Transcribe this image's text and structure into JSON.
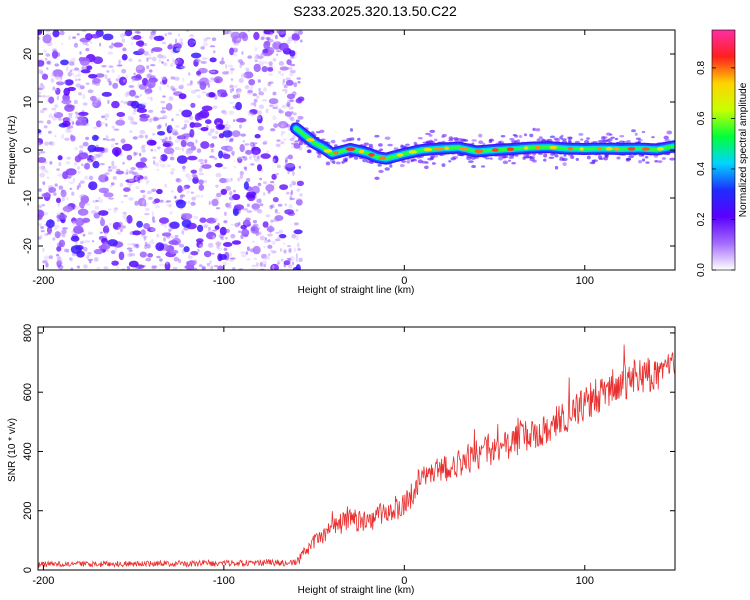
{
  "title": "S233.2025.320.13.50.C22",
  "colors": {
    "snr_line": "#e8302f",
    "noise_cloud": "#8b2cf0",
    "colormap": [
      "#ffffff",
      "#a46bff",
      "#5a00ff",
      "#1f2dff",
      "#00d5ff",
      "#00ff3a",
      "#c8ff00",
      "#ffd400",
      "#ff1f1f",
      "#ff2fa5"
    ]
  },
  "chart_data": [
    {
      "id": "spectrogram",
      "type": "heatmap",
      "xlabel": "Height of straight line (km)",
      "ylabel": "Frequency (Hz)",
      "xlim": [
        -203,
        150
      ],
      "ylim": [
        -25,
        25
      ],
      "xticks": [
        -200,
        -100,
        0,
        100
      ],
      "yticks": [
        -20,
        -10,
        0,
        10,
        20
      ],
      "colorbar": {
        "label": "Normalized spectral amplitude",
        "range": [
          0.0,
          0.95
        ],
        "ticks": [
          0.0,
          0.2,
          0.4,
          0.6,
          0.8
        ]
      },
      "noise_region_x": [
        -203,
        -57
      ],
      "noise_amplitude_range": [
        0.05,
        0.25
      ],
      "tone_track": {
        "x": [
          -60,
          -55,
          -50,
          -45,
          -40,
          -35,
          -30,
          -25,
          -20,
          -15,
          -10,
          -5,
          0,
          10,
          20,
          30,
          40,
          50,
          60,
          70,
          80,
          90,
          100,
          110,
          120,
          130,
          140,
          150
        ],
        "frequency": [
          4.5,
          3.0,
          1.5,
          0.5,
          -0.8,
          -0.3,
          0.2,
          -0.2,
          -0.7,
          -1.5,
          -1.8,
          -1.3,
          -0.8,
          0.0,
          0.3,
          0.5,
          -0.3,
          0.0,
          0.2,
          0.5,
          0.6,
          0.3,
          0.2,
          0.3,
          0.2,
          0.3,
          0.1,
          0.8
        ],
        "peak_amplitude": 0.9
      }
    },
    {
      "id": "snr",
      "type": "line",
      "xlabel": "Height of straight line (km)",
      "ylabel": "SNR (10 * v/v)",
      "xlim": [
        -203,
        150
      ],
      "ylim": [
        0,
        820
      ],
      "xticks": [
        -200,
        -100,
        0,
        100
      ],
      "yticks": [
        0,
        200,
        400,
        600,
        800
      ],
      "series": [
        {
          "name": "SNR",
          "x": [
            -203,
            -150,
            -100,
            -60,
            -50,
            -40,
            -30,
            -20,
            -10,
            0,
            5,
            10,
            20,
            30,
            40,
            50,
            60,
            70,
            80,
            90,
            100,
            110,
            120,
            130,
            140,
            150
          ],
          "envelope": [
            20,
            22,
            24,
            26,
            95,
            140,
            170,
            160,
            200,
            220,
            260,
            320,
            330,
            360,
            390,
            410,
            430,
            460,
            480,
            520,
            560,
            600,
            630,
            660,
            660,
            690
          ],
          "noise": [
            18,
            18,
            18,
            18,
            55,
            65,
            70,
            70,
            75,
            80,
            80,
            90,
            90,
            90,
            95,
            95,
            95,
            100,
            100,
            105,
            110,
            115,
            115,
            120,
            110,
            100
          ]
        }
      ]
    }
  ]
}
